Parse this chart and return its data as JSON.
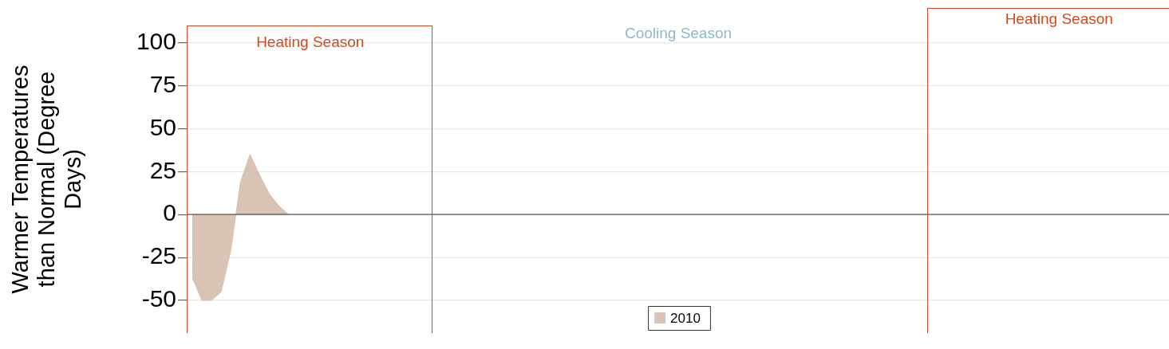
{
  "chart_data": {
    "type": "area",
    "ylabel": "Warmer Temperatures than Normal (Degree Days)",
    "categories": [
      null,
      null,
      null,
      null,
      null,
      null,
      null,
      null,
      null,
      null,
      null,
      null,
      null,
      null,
      null,
      null,
      null,
      null,
      null,
      null,
      null,
      null,
      null,
      null,
      null,
      null,
      null,
      null,
      null,
      null,
      null,
      null,
      null,
      null,
      null,
      null,
      null,
      null,
      null,
      null,
      null,
      null,
      null,
      null,
      null,
      null,
      null,
      null,
      null,
      null,
      null,
      null,
      null,
      null,
      null,
      null,
      null,
      null,
      null,
      null,
      null,
      null,
      null,
      null,
      null,
      null,
      null,
      null,
      null,
      null,
      null,
      null,
      null,
      null,
      null,
      null,
      null,
      null,
      null,
      null,
      null,
      null,
      null,
      null,
      null,
      null,
      null,
      null,
      null,
      null,
      null,
      null,
      null,
      null,
      null,
      null,
      null,
      null,
      null,
      null,
      null,
      null
    ],
    "series": [
      {
        "name": "2010",
        "color": "#d9c3b5",
        "values": [
          -37,
          -50,
          -50,
          -45,
          -21,
          19,
          35,
          23,
          12,
          5,
          0,
          null,
          null,
          null,
          null,
          null,
          null,
          null,
          null,
          null,
          null,
          null,
          null,
          null,
          null,
          null,
          null,
          null,
          null,
          null,
          null,
          null,
          null,
          null,
          null,
          null,
          null,
          null,
          null,
          null,
          null,
          null,
          null,
          null,
          null,
          null,
          null,
          null,
          null,
          null,
          null,
          null,
          null,
          null,
          null,
          null,
          null,
          null,
          null,
          null,
          null,
          null,
          null,
          null,
          null,
          null,
          null,
          null,
          null,
          null,
          null,
          null,
          null,
          null,
          null,
          null,
          null,
          null,
          null,
          null,
          null,
          null,
          null,
          null,
          null,
          null,
          null,
          null,
          null,
          null,
          null,
          null,
          null,
          null,
          null,
          null,
          null,
          null,
          null,
          null,
          null,
          null
        ]
      }
    ],
    "ylim": [
      -69,
      110
    ],
    "yticks": [
      -50,
      -25,
      0,
      25,
      50,
      75,
      100
    ],
    "tick_labels": "y",
    "grid": "y",
    "legend": "bottom",
    "annotations": [
      "Heating Season",
      "Cooling Season",
      "Heating Season"
    ]
  }
}
